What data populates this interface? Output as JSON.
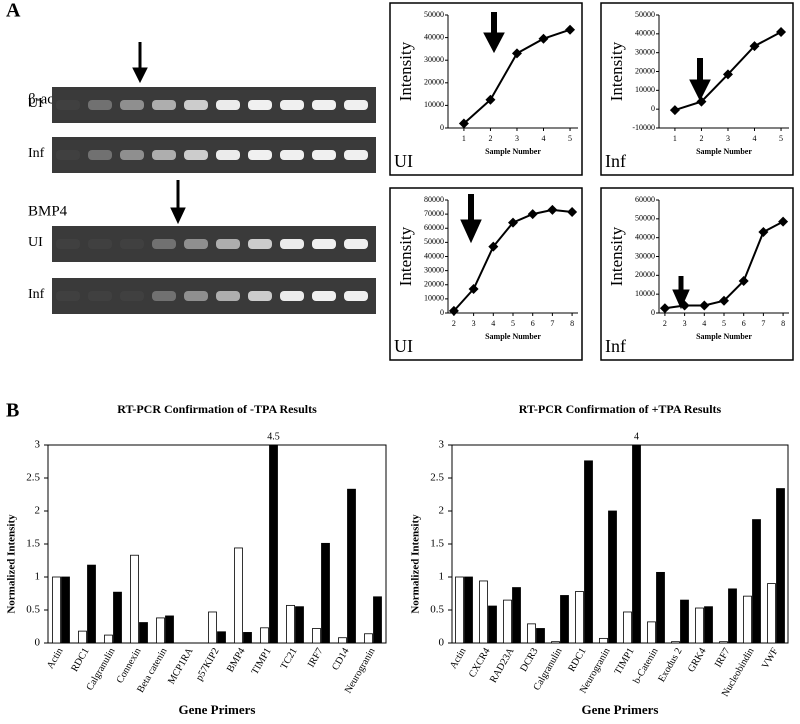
{
  "panel_labels": [
    "A",
    "B"
  ],
  "gels": [
    {
      "label": "β-actin",
      "rows": [
        "UI",
        "Inf"
      ]
    },
    {
      "label": "BMP4",
      "rows": [
        "UI",
        "Inf"
      ]
    }
  ],
  "chart_data": [
    {
      "type": "line",
      "panel_label": "UI",
      "y_label": "Intensity",
      "x_label": "Sample Number",
      "x": [
        1,
        2,
        3,
        4,
        5
      ],
      "xlim": [
        0.4,
        5.3
      ],
      "xticks": [
        1,
        2,
        3,
        4,
        5
      ],
      "ylim": [
        0,
        50000
      ],
      "yticks": [
        0,
        10000,
        20000,
        30000,
        40000,
        50000
      ],
      "series": [
        {
          "color": "#000000",
          "values": [
            2000,
            12500,
            33000,
            39500,
            43500
          ]
        }
      ]
    },
    {
      "type": "line",
      "panel_label": "Inf",
      "y_label": "Intensity",
      "x_label": "Sample Number",
      "x": [
        1,
        2,
        3,
        4,
        5
      ],
      "xlim": [
        0.4,
        5.3
      ],
      "xticks": [
        1,
        2,
        3,
        4,
        5
      ],
      "ylim": [
        -10000,
        50000
      ],
      "yticks": [
        -10000,
        0,
        10000,
        20000,
        30000,
        40000,
        50000
      ],
      "series": [
        {
          "color": "#000000",
          "values": [
            -500,
            4000,
            18500,
            33500,
            41000
          ]
        }
      ]
    },
    {
      "type": "line",
      "panel_label": "UI",
      "y_label": "Intensity",
      "x_label": "Sample Number",
      "x": [
        2,
        3,
        4,
        5,
        6,
        7,
        8
      ],
      "xlim": [
        1.7,
        8.3
      ],
      "xticks": [
        2,
        3,
        4,
        5,
        6,
        7,
        8
      ],
      "ylim": [
        0,
        80000
      ],
      "yticks": [
        0,
        10000,
        20000,
        30000,
        40000,
        50000,
        60000,
        70000,
        80000
      ],
      "series": [
        {
          "color": "#000000",
          "values": [
            1500,
            17000,
            47000,
            64000,
            70000,
            73000,
            71500
          ]
        }
      ]
    },
    {
      "type": "line",
      "panel_label": "Inf",
      "y_label": "Intensity",
      "x_label": "Sample Number",
      "x": [
        2,
        3,
        4,
        5,
        6,
        7,
        8
      ],
      "xlim": [
        1.7,
        8.3
      ],
      "xticks": [
        2,
        3,
        4,
        5,
        6,
        7,
        8
      ],
      "ylim": [
        0,
        60000
      ],
      "yticks": [
        0,
        10000,
        20000,
        30000,
        40000,
        50000,
        60000
      ],
      "series": [
        {
          "color": "#000000",
          "values": [
            2500,
            4000,
            4000,
            6500,
            17000,
            43000,
            48500
          ]
        }
      ]
    },
    {
      "type": "bar",
      "title": "RT-PCR Confirmation of -TPA Results",
      "y_label": "Normalized Intensity",
      "x_label": "Gene Primers",
      "categories": [
        "Actin",
        "RDC1",
        "Calgranulin",
        "Connexin",
        "Beta catenin",
        "MCP1RA",
        "p57KIP2",
        "BMP4",
        "TIMP1",
        "TC21",
        "IRF7",
        "CD14",
        "Neurogranin"
      ],
      "ylim": [
        0,
        3
      ],
      "yticks": [
        0,
        0.5,
        1,
        1.5,
        2,
        2.5,
        3
      ],
      "series": [
        {
          "color": "#ffffff",
          "values": [
            1.0,
            0.18,
            0.12,
            1.33,
            0.38,
            0,
            0.47,
            1.44,
            0.23,
            0.57,
            0.22,
            0.08,
            0.14
          ]
        },
        {
          "color": "#000000",
          "values": [
            1.0,
            1.18,
            0.77,
            0.31,
            0.41,
            0,
            0.17,
            0.16,
            4.5,
            0.55,
            1.51,
            2.33,
            0.7
          ],
          "value_labels": [
            null,
            null,
            null,
            null,
            null,
            null,
            null,
            null,
            "4.5",
            null,
            null,
            null,
            null
          ]
        }
      ]
    },
    {
      "type": "bar",
      "title": "RT-PCR Confirmation of +TPA Results",
      "y_label": "Normalized Intensity",
      "x_label": "Gene Primers",
      "categories": [
        "Actin",
        "CXCR4",
        "RAD23A",
        "DCR3",
        "Calgranulin",
        "RDC1",
        "Neurogranin",
        "TIMP1",
        "b-Catenin",
        "Exodus 2",
        "GRK4",
        "IRF7",
        "Nucleobindin",
        "VWF"
      ],
      "ylim": [
        0,
        3
      ],
      "yticks": [
        0,
        0.5,
        1,
        1.5,
        2,
        2.5,
        3
      ],
      "series": [
        {
          "color": "#ffffff",
          "values": [
            1.0,
            0.94,
            0.65,
            0.29,
            0.02,
            0.78,
            0.07,
            0.47,
            0.32,
            0.02,
            0.53,
            0.02,
            0.71,
            0.9
          ]
        },
        {
          "color": "#000000",
          "values": [
            1.0,
            0.56,
            0.84,
            0.22,
            0.72,
            2.76,
            2.0,
            4,
            1.07,
            0.65,
            0.55,
            0.82,
            1.87,
            2.34
          ],
          "value_labels": [
            null,
            null,
            null,
            null,
            null,
            null,
            null,
            "4",
            null,
            null,
            null,
            null,
            null,
            null
          ]
        }
      ]
    }
  ]
}
